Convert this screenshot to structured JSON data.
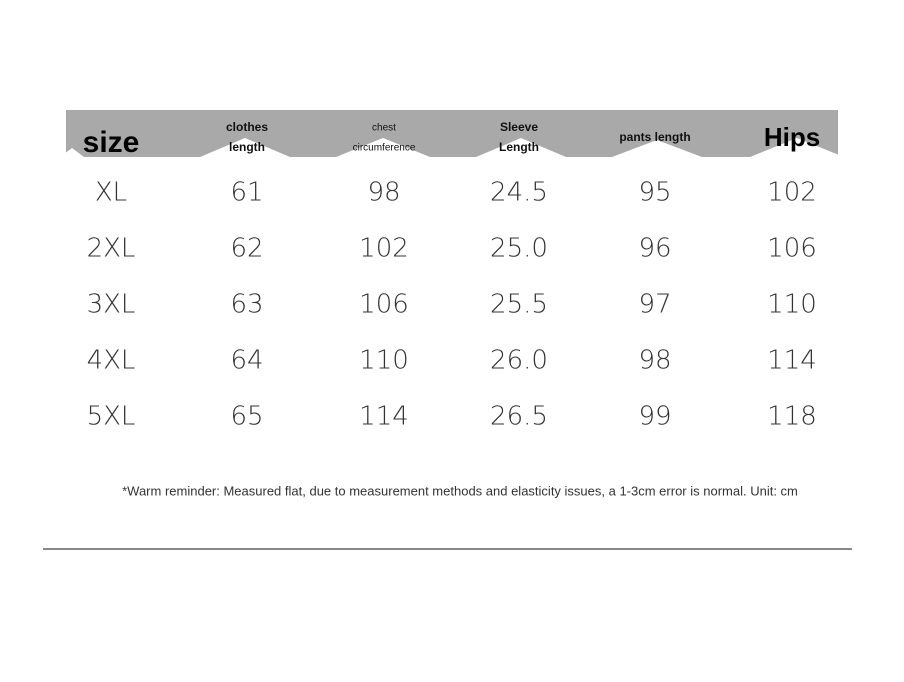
{
  "table": {
    "header": [
      [
        "size"
      ],
      [
        "clothes",
        "length"
      ],
      [
        "chest",
        "circumference"
      ],
      [
        "Sleeve",
        "Length"
      ],
      [
        "pants length"
      ],
      [
        "Hips"
      ]
    ],
    "rows": [
      [
        "XL",
        "61",
        "98",
        "24.5",
        "95",
        "102"
      ],
      [
        "2XL",
        "62",
        "102",
        "25.0",
        "96",
        "106"
      ],
      [
        "3XL",
        "63",
        "106",
        "25.5",
        "97",
        "110"
      ],
      [
        "4XL",
        "64",
        "110",
        "26.0",
        "98",
        "114"
      ],
      [
        "5XL",
        "65",
        "114",
        "26.5",
        "99",
        "118"
      ]
    ]
  },
  "note": "*Warm reminder: Measured flat, due to measurement methods and elasticity issues, a 1-3cm error is normal. Unit: cm"
}
